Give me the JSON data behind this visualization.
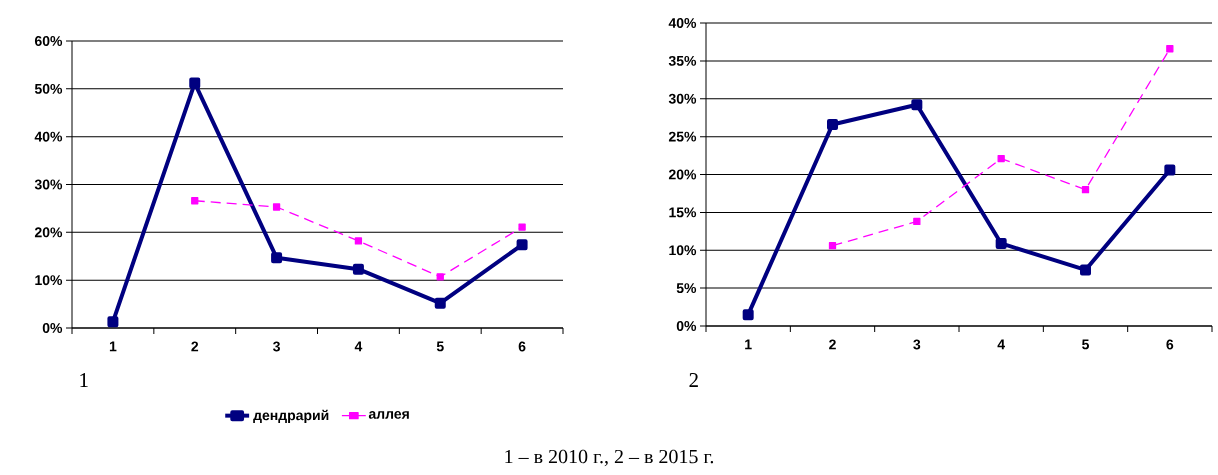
{
  "chart_data": [
    {
      "type": "line",
      "categories": [
        "1",
        "2",
        "3",
        "4",
        "5",
        "6"
      ],
      "series": [
        {
          "name": "дендрарий",
          "color": "#000080",
          "line_style": "solid",
          "values": [
            1.3,
            51.2,
            14.7,
            12.3,
            5.2,
            17.4
          ]
        },
        {
          "name": "аллея",
          "color": "#ff00ff",
          "line_style": "dashed",
          "values": [
            null,
            26.6,
            25.3,
            18.2,
            10.7,
            21.1
          ]
        }
      ],
      "ylim": [
        0,
        60
      ],
      "yticks": [
        {
          "value": 0,
          "label": "0%"
        },
        {
          "value": 10,
          "label": "10%"
        },
        {
          "value": 20,
          "label": "20%"
        },
        {
          "value": 30,
          "label": "30%"
        },
        {
          "value": 40,
          "label": "40%"
        },
        {
          "value": 50,
          "label": "50%"
        },
        {
          "value": 60,
          "label": "60%"
        }
      ],
      "grid": "y",
      "marker": "square",
      "legend": "bottom",
      "annotations": [
        "1",
        "1 – в 2010 г., 2 – в 2015 г."
      ]
    },
    {
      "type": "line",
      "categories": [
        "1",
        "2",
        "3",
        "4",
        "5",
        "6"
      ],
      "series": [
        {
          "color": "#000080",
          "line_style": "solid",
          "values": [
            1.5,
            26.6,
            29.2,
            10.9,
            7.4,
            20.6
          ]
        },
        {
          "color": "#ff00ff",
          "line_style": "dashed",
          "values": [
            null,
            10.6,
            13.8,
            22.1,
            18.0,
            36.6
          ]
        }
      ],
      "ylim": [
        0,
        40
      ],
      "yticks": [
        {
          "value": 0,
          "label": "0%"
        },
        {
          "value": 5,
          "label": "5%"
        },
        {
          "value": 10,
          "label": "10%"
        },
        {
          "value": 15,
          "label": "15%"
        },
        {
          "value": 20,
          "label": "20%"
        },
        {
          "value": 25,
          "label": "25%"
        },
        {
          "value": 30,
          "label": "30%"
        },
        {
          "value": 35,
          "label": "35%"
        },
        {
          "value": 40,
          "label": "40%"
        }
      ],
      "grid": "y",
      "marker": "square",
      "annotations": [
        "2"
      ]
    }
  ]
}
